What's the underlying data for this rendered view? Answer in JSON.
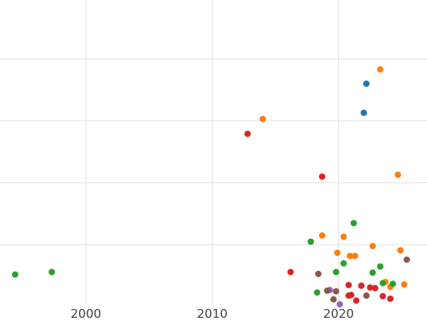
{
  "chart_data": {
    "type": "scatter",
    "title": "",
    "xlabel": "",
    "ylabel": "",
    "xlim": [
      1993.2,
      2027
    ],
    "ylim": [
      0,
      4.9
    ],
    "x_ticks": [
      2000,
      2010,
      2020
    ],
    "x_tick_labels": [
      "2000",
      "2010",
      "2020"
    ],
    "y_gridlines": [
      0.95,
      1.95,
      2.95,
      3.95
    ],
    "grid": true,
    "legend": "none",
    "series": [
      {
        "name": "blue",
        "color": "#1f77b4",
        "points": [
          [
            2022.2,
            3.55
          ],
          [
            2022.0,
            3.08
          ]
        ]
      },
      {
        "name": "orange",
        "color": "#ff7f0e",
        "points": [
          [
            2023.3,
            3.78
          ],
          [
            2014.0,
            2.98
          ],
          [
            2024.7,
            2.08
          ],
          [
            2018.7,
            1.1
          ],
          [
            2020.4,
            1.08
          ],
          [
            2019.9,
            0.82
          ],
          [
            2020.9,
            0.77
          ],
          [
            2021.3,
            0.77
          ],
          [
            2022.7,
            0.93
          ],
          [
            2024.9,
            0.86
          ],
          [
            2023.7,
            0.35
          ],
          [
            2024.1,
            0.27
          ],
          [
            2025.2,
            0.31
          ]
        ]
      },
      {
        "name": "red",
        "color": "#d62728",
        "points": [
          [
            2012.8,
            2.74
          ],
          [
            2018.7,
            2.05
          ],
          [
            2016.2,
            0.51
          ],
          [
            2020.8,
            0.3
          ],
          [
            2021.8,
            0.29
          ],
          [
            2022.5,
            0.26
          ],
          [
            2022.9,
            0.25
          ],
          [
            2020.8,
            0.13
          ],
          [
            2021.0,
            0.14
          ],
          [
            2023.5,
            0.12
          ],
          [
            2024.1,
            0.08
          ],
          [
            2021.4,
            0.05
          ]
        ]
      },
      {
        "name": "green",
        "color": "#2ca02c",
        "points": [
          [
            1994.4,
            0.47
          ],
          [
            1997.3,
            0.51
          ],
          [
            2017.8,
            1.0
          ],
          [
            2021.2,
            1.3
          ],
          [
            2020.4,
            0.65
          ],
          [
            2019.8,
            0.51
          ],
          [
            2023.3,
            0.6
          ],
          [
            2022.7,
            0.5
          ],
          [
            2023.5,
            0.33
          ],
          [
            2024.3,
            0.32
          ],
          [
            2018.3,
            0.18
          ]
        ]
      },
      {
        "name": "purple",
        "color": "#9467bd",
        "points": [
          [
            2019.3,
            0.22
          ],
          [
            2020.1,
            -0.01
          ]
        ]
      },
      {
        "name": "brown",
        "color": "#8c564b",
        "points": [
          [
            2018.4,
            0.48
          ],
          [
            2019.1,
            0.21
          ],
          [
            2019.8,
            0.2
          ],
          [
            2019.6,
            0.07
          ],
          [
            2022.2,
            0.13
          ],
          [
            2025.4,
            0.71
          ]
        ]
      }
    ]
  }
}
